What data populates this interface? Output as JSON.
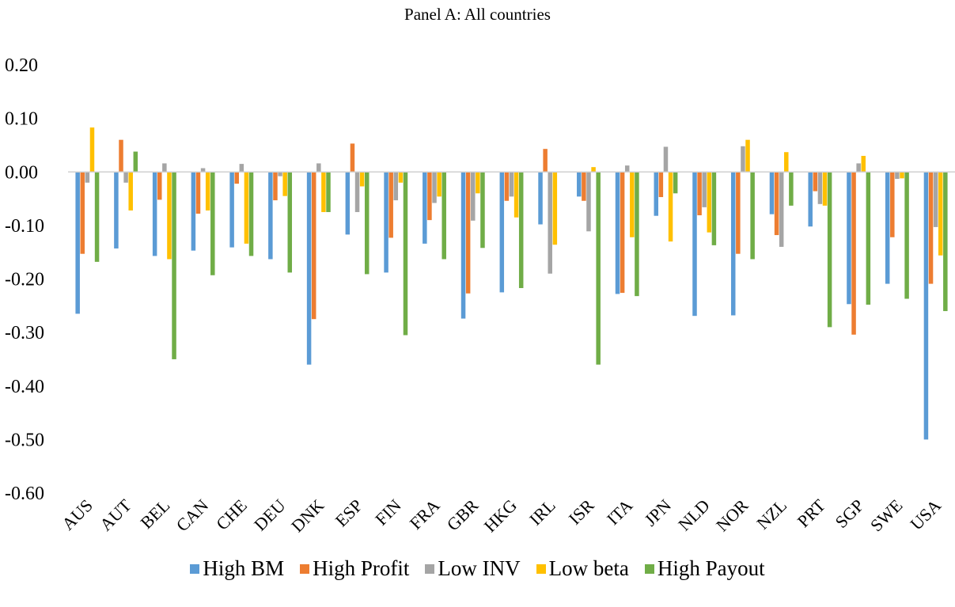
{
  "chart_data": {
    "type": "bar",
    "title": "Panel A: All countries",
    "xlabel": "",
    "ylabel": "",
    "ylim": [
      -0.6,
      0.2
    ],
    "yticks": [
      "0.20",
      "0.10",
      "0.00",
      "-0.10",
      "-0.20",
      "-0.30",
      "-0.40",
      "-0.50",
      "-0.60"
    ],
    "categories": [
      "AUS",
      "AUT",
      "BEL",
      "CAN",
      "CHE",
      "DEU",
      "DNK",
      "ESP",
      "FIN",
      "FRA",
      "GBR",
      "HKG",
      "IRL",
      "ISR",
      "ITA",
      "JPN",
      "NLD",
      "NOR",
      "NZL",
      "PRT",
      "SGP",
      "SWE",
      "USA"
    ],
    "series": [
      {
        "name": "High BM",
        "color": "#5B9BD5",
        "values": [
          -0.265,
          -0.143,
          -0.157,
          -0.147,
          -0.141,
          -0.163,
          -0.36,
          -0.117,
          -0.188,
          -0.134,
          -0.274,
          -0.225,
          -0.098,
          -0.046,
          -0.228,
          -0.082,
          -0.269,
          -0.268,
          -0.079,
          -0.102,
          -0.247,
          -0.209,
          -0.5
        ]
      },
      {
        "name": "High Profit",
        "color": "#ED7D31",
        "values": [
          -0.153,
          0.06,
          -0.052,
          -0.078,
          -0.022,
          -0.053,
          -0.275,
          0.053,
          -0.123,
          -0.09,
          -0.227,
          -0.054,
          0.043,
          -0.054,
          -0.226,
          -0.047,
          -0.081,
          -0.153,
          -0.118,
          -0.036,
          -0.304,
          -0.122,
          -0.209
        ]
      },
      {
        "name": "Low INV",
        "color": "#A5A5A5",
        "values": [
          -0.02,
          -0.02,
          0.016,
          0.007,
          0.015,
          -0.008,
          0.016,
          -0.075,
          -0.053,
          -0.058,
          -0.091,
          -0.046,
          -0.19,
          -0.111,
          0.012,
          0.047,
          -0.066,
          0.048,
          -0.14,
          -0.06,
          0.016,
          -0.013,
          -0.103
        ]
      },
      {
        "name": "Low beta",
        "color": "#FFC000",
        "values": [
          0.083,
          -0.072,
          -0.163,
          -0.072,
          -0.134,
          -0.045,
          -0.075,
          -0.027,
          -0.02,
          -0.046,
          -0.04,
          -0.085,
          -0.136,
          0.009,
          -0.122,
          -0.13,
          -0.113,
          0.06,
          0.037,
          -0.063,
          0.03,
          -0.012,
          -0.156
        ]
      },
      {
        "name": "High Payout",
        "color": "#70AD47",
        "values": [
          -0.168,
          0.038,
          -0.35,
          -0.193,
          -0.157,
          -0.188,
          -0.075,
          -0.191,
          -0.305,
          -0.163,
          -0.142,
          -0.217,
          0.0,
          -0.36,
          -0.232,
          -0.04,
          -0.137,
          -0.163,
          -0.063,
          -0.29,
          -0.248,
          -0.237,
          -0.26
        ]
      }
    ],
    "grid": false,
    "legend_position": "bottom"
  }
}
